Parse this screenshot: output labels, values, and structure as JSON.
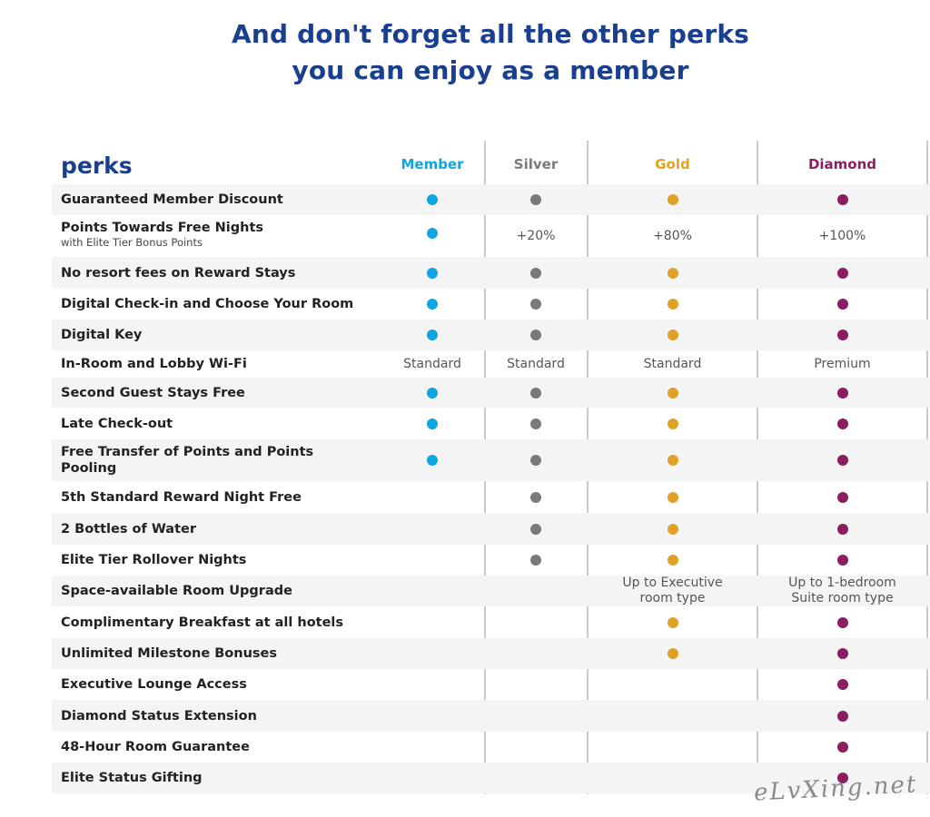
{
  "headline": {
    "line1": "And don't forget all the other perks",
    "line2": "you can enjoy as a member"
  },
  "table": {
    "title": "perks",
    "tiers": [
      {
        "key": "member",
        "label": "Member",
        "color": "#0ea5e0"
      },
      {
        "key": "silver",
        "label": "Silver",
        "color": "#7a7a7a"
      },
      {
        "key": "gold",
        "label": "Gold",
        "color": "#e0a226"
      },
      {
        "key": "diamond",
        "label": "Diamond",
        "color": "#8a1e5f"
      }
    ],
    "rows": [
      {
        "perk": "Guaranteed Member Discount",
        "sub": "",
        "cells": [
          "dot",
          "dot",
          "dot",
          "dot"
        ]
      },
      {
        "perk": "Points Towards Free Nights",
        "sub": "with Elite Tier Bonus Points",
        "cells": [
          "dot",
          "+20%",
          "+80%",
          "+100%"
        ]
      },
      {
        "perk": "No resort fees on Reward Stays",
        "sub": "",
        "cells": [
          "dot",
          "dot",
          "dot",
          "dot"
        ]
      },
      {
        "perk": "Digital Check-in and Choose Your Room",
        "sub": "",
        "cells": [
          "dot",
          "dot",
          "dot",
          "dot"
        ]
      },
      {
        "perk": "Digital Key",
        "sub": "",
        "cells": [
          "dot",
          "dot",
          "dot",
          "dot"
        ]
      },
      {
        "perk": "In-Room and Lobby Wi-Fi",
        "sub": "",
        "cells": [
          "Standard",
          "Standard",
          "Standard",
          "Premium"
        ]
      },
      {
        "perk": "Second Guest Stays Free",
        "sub": "",
        "cells": [
          "dot",
          "dot",
          "dot",
          "dot"
        ]
      },
      {
        "perk": "Late Check-out",
        "sub": "",
        "cells": [
          "dot",
          "dot",
          "dot",
          "dot"
        ]
      },
      {
        "perk": "Free Transfer of Points and Points Pooling",
        "sub": "",
        "cells": [
          "dot",
          "dot",
          "dot",
          "dot"
        ]
      },
      {
        "perk": "5th Standard Reward Night Free",
        "sub": "",
        "cells": [
          "",
          "dot",
          "dot",
          "dot"
        ]
      },
      {
        "perk": "2 Bottles of Water",
        "sub": "",
        "cells": [
          "",
          "dot",
          "dot",
          "dot"
        ]
      },
      {
        "perk": "Elite Tier Rollover Nights",
        "sub": "",
        "cells": [
          "",
          "dot",
          "dot",
          "dot"
        ]
      },
      {
        "perk": "Space-available Room Upgrade",
        "sub": "",
        "cells": [
          "",
          "",
          "Up to Executive room type",
          "Up to 1-bedroom Suite room type"
        ]
      },
      {
        "perk": "Complimentary Breakfast at all hotels",
        "sub": "",
        "cells": [
          "",
          "",
          "dot",
          "dot"
        ]
      },
      {
        "perk": "Unlimited Milestone Bonuses",
        "sub": "",
        "cells": [
          "",
          "",
          "dot",
          "dot"
        ]
      },
      {
        "perk": "Executive Lounge Access",
        "sub": "",
        "cells": [
          "",
          "",
          "",
          "dot"
        ]
      },
      {
        "perk": "Diamond Status Extension",
        "sub": "",
        "cells": [
          "",
          "",
          "",
          "dot"
        ]
      },
      {
        "perk": "48-Hour Room Guarantee",
        "sub": "",
        "cells": [
          "",
          "",
          "",
          "dot"
        ]
      },
      {
        "perk": "Elite Status Gifting",
        "sub": "",
        "cells": [
          "",
          "",
          "",
          "dot"
        ]
      }
    ]
  },
  "watermark": "eLvXing.net"
}
